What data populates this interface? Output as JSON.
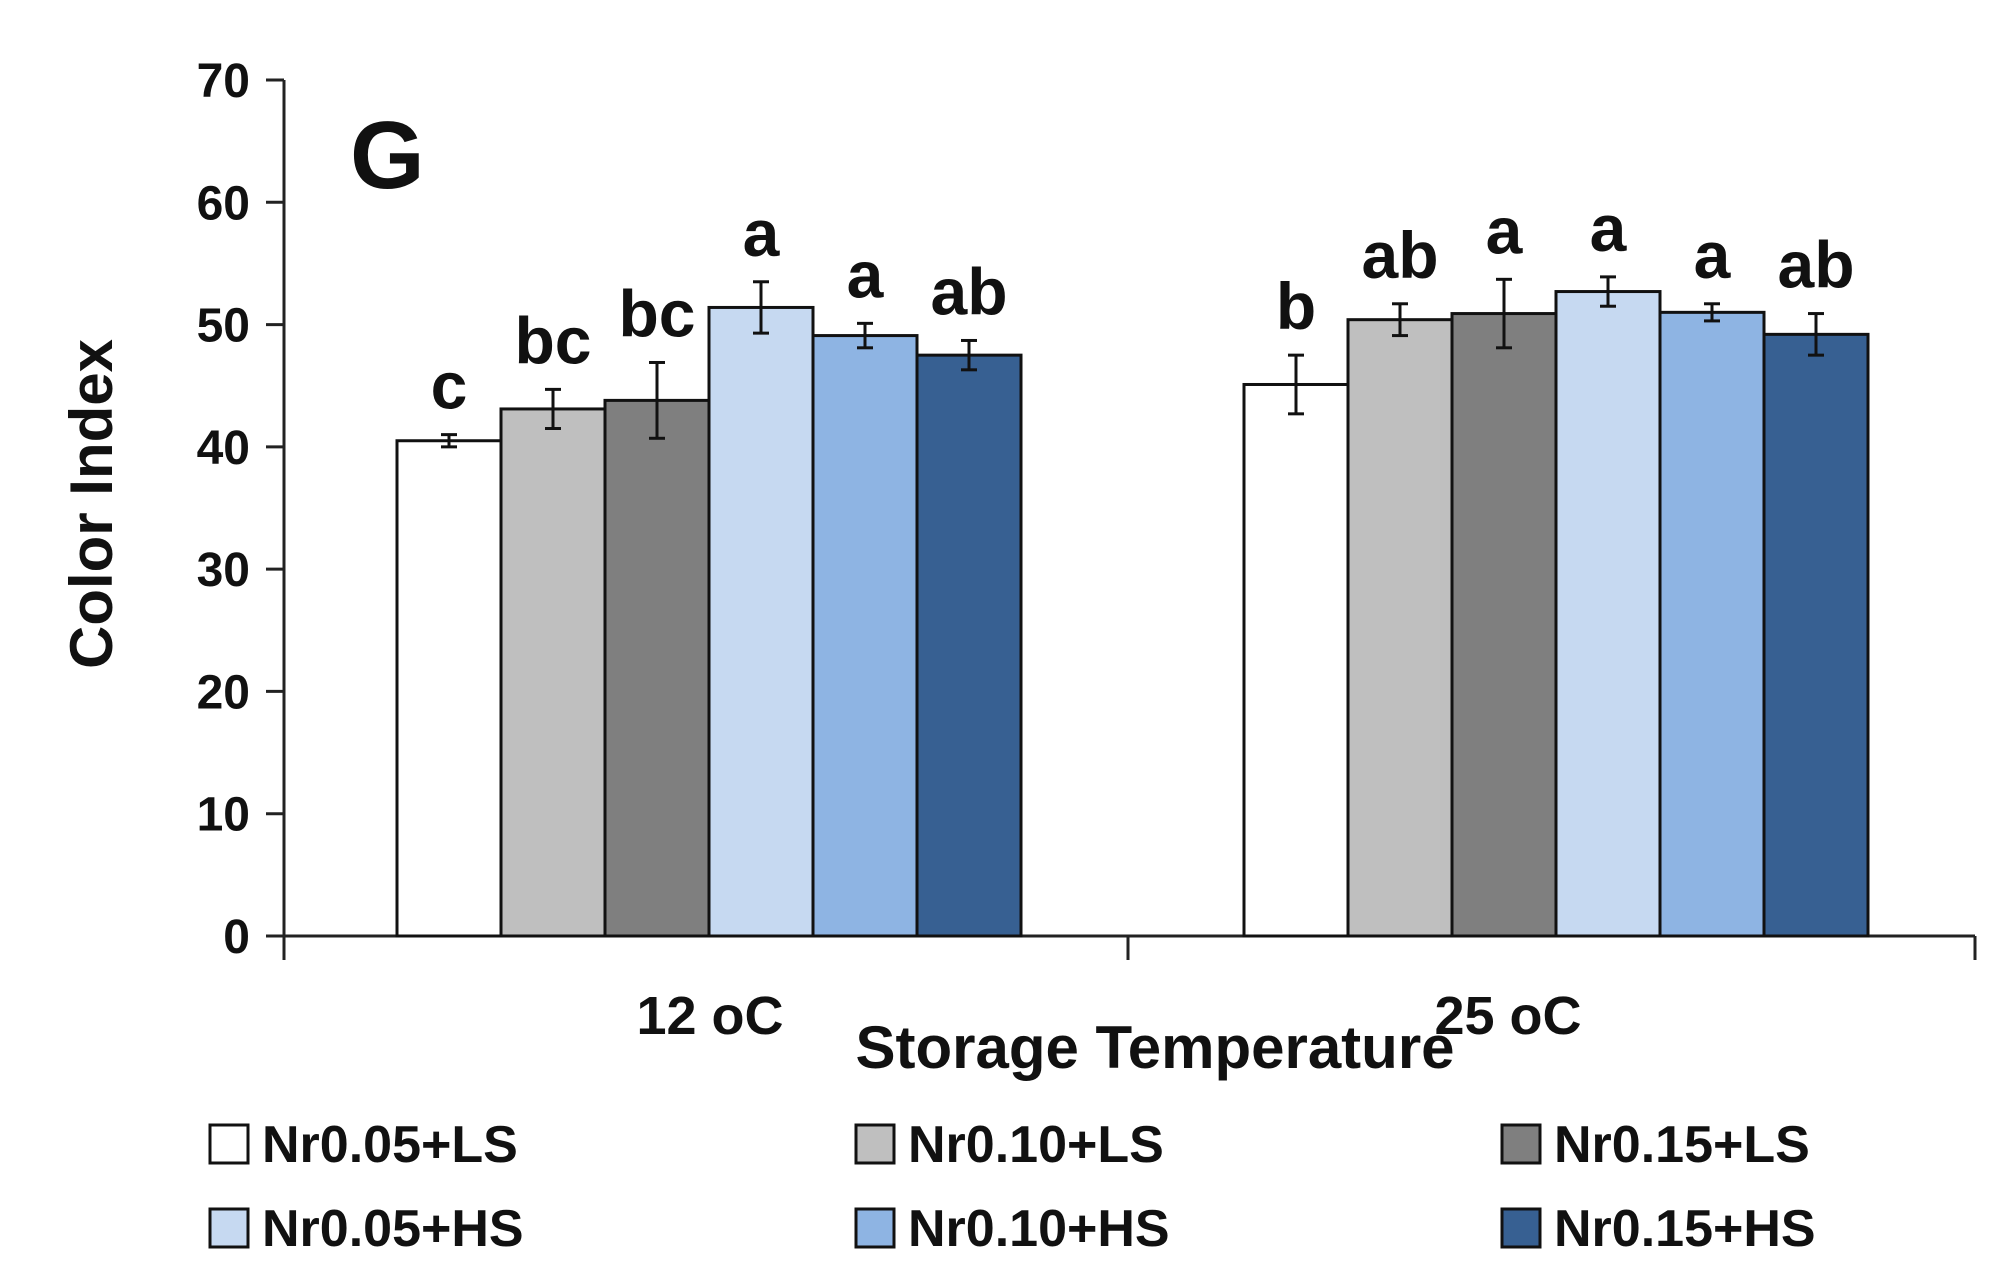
{
  "chart_data": {
    "type": "bar",
    "panel_label": "G",
    "title": "",
    "xlabel": "Storage Temperature",
    "ylabel": "Color Index",
    "ylim": [
      0,
      70
    ],
    "yticks": [
      0,
      10,
      20,
      30,
      40,
      50,
      60,
      70
    ],
    "grid": false,
    "legend_position": "bottom",
    "categories": [
      "12 oC",
      "25 oC"
    ],
    "series": [
      {
        "name": "Nr0.05+LS",
        "color": "#ffffff",
        "values": [
          40.5,
          45.1
        ],
        "errors": [
          0.5,
          2.4
        ],
        "labels": [
          "c",
          "b"
        ]
      },
      {
        "name": "Nr0.10+LS",
        "color": "#bfbfbf",
        "values": [
          43.1,
          50.4
        ],
        "errors": [
          1.6,
          1.3
        ],
        "labels": [
          "bc",
          "ab"
        ]
      },
      {
        "name": "Nr0.15+LS",
        "color": "#7f7f7f",
        "values": [
          43.8,
          50.9
        ],
        "errors": [
          3.1,
          2.8
        ],
        "labels": [
          "bc",
          "a"
        ]
      },
      {
        "name": "Nr0.05+HS",
        "color": "#c6d9f1",
        "values": [
          51.4,
          52.7
        ],
        "errors": [
          2.1,
          1.2
        ],
        "labels": [
          "a",
          "a"
        ]
      },
      {
        "name": "Nr0.10+HS",
        "color": "#8eb4e3",
        "values": [
          49.1,
          51.0
        ],
        "errors": [
          1.0,
          0.7
        ],
        "labels": [
          "a",
          "a"
        ]
      },
      {
        "name": "Nr0.15+HS",
        "color": "#376092",
        "values": [
          47.5,
          49.2
        ],
        "errors": [
          1.2,
          1.7
        ],
        "labels": [
          "ab",
          "ab"
        ]
      }
    ]
  }
}
